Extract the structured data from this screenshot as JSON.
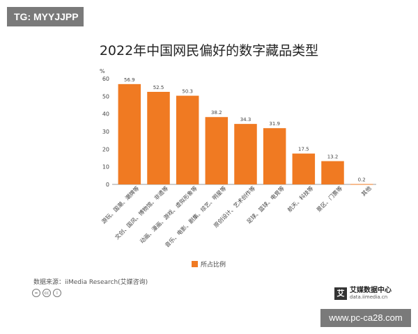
{
  "badge": "TG: MYYJJPP",
  "watermark": "www.pc-ca28.com",
  "source": "数据来源：iiMedia Research(艾媒咨询)",
  "brand": {
    "name": "艾媒数据中心",
    "url": "data.iimedia.cn"
  },
  "colors": {
    "bar": "#f07a22",
    "axis": "#999999",
    "text": "#444444"
  },
  "chart_data": {
    "type": "bar",
    "title": "2022年中国网民偏好的数字藏品类型",
    "ylabel": "%",
    "ylim": [
      0,
      60
    ],
    "yticks": [
      0,
      10,
      20,
      30,
      40,
      50,
      60
    ],
    "categories": [
      "游玩、国潮、潮牌等",
      "文创、国风、博物馆、非遗等",
      "动画、漫画、游戏、虚拟形象等",
      "音乐、电影、剧集、综艺、明星等",
      "原创设计、艺术创作等",
      "足球、篮球、电竞等",
      "航天、科技等",
      "景区、门票等",
      "其他"
    ],
    "series": [
      {
        "name": "所占比例",
        "values": [
          56.9,
          52.5,
          50.3,
          38.2,
          34.3,
          31.9,
          17.5,
          13.2,
          0.2
        ]
      }
    ],
    "legend": "bottom-center",
    "grid": false
  }
}
